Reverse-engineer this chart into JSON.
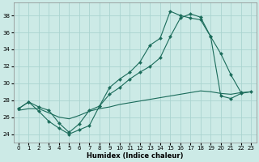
{
  "xlabel": "Humidex (Indice chaleur)",
  "xlim": [
    -0.5,
    23.5
  ],
  "ylim": [
    23.0,
    39.5
  ],
  "yticks": [
    24,
    26,
    28,
    30,
    32,
    34,
    36,
    38
  ],
  "xticks": [
    0,
    1,
    2,
    3,
    4,
    5,
    6,
    7,
    8,
    9,
    10,
    11,
    12,
    13,
    14,
    15,
    16,
    17,
    18,
    19,
    20,
    21,
    22,
    23
  ],
  "bg_color": "#cceae6",
  "grid_color": "#aad4d0",
  "line_color": "#1a6b5a",
  "line1_x": [
    0,
    1,
    2,
    3,
    4,
    5,
    6,
    7,
    8,
    9,
    10,
    11,
    12,
    13,
    14,
    15,
    16,
    17,
    18,
    19,
    20,
    21,
    22,
    23
  ],
  "line1_y": [
    27.0,
    27.8,
    26.7,
    25.5,
    24.7,
    24.0,
    24.5,
    25.0,
    27.3,
    29.5,
    30.5,
    31.3,
    32.5,
    34.5,
    35.3,
    38.5,
    38.0,
    37.7,
    37.5,
    35.5,
    33.5,
    31.0,
    28.9,
    null
  ],
  "line2_x": [
    0,
    1,
    2,
    3,
    4,
    5,
    6,
    7,
    8,
    9,
    10,
    11,
    12,
    13,
    14,
    15,
    16,
    17,
    18,
    19,
    20,
    21,
    22,
    23
  ],
  "line2_y": [
    27.0,
    27.8,
    27.2,
    26.8,
    25.3,
    24.2,
    25.2,
    26.8,
    27.3,
    28.7,
    29.5,
    30.5,
    31.3,
    32.0,
    33.0,
    35.5,
    37.7,
    38.2,
    37.8,
    35.5,
    28.5,
    28.2,
    28.8,
    29.0
  ],
  "line3_x": [
    0,
    1,
    2,
    3,
    4,
    5,
    6,
    7,
    8,
    9,
    10,
    11,
    12,
    13,
    14,
    15,
    16,
    17,
    18,
    19,
    20,
    21,
    22,
    23
  ],
  "line3_y": [
    26.8,
    27.0,
    27.0,
    26.5,
    26.0,
    25.8,
    26.2,
    26.7,
    27.0,
    27.2,
    27.5,
    27.7,
    27.9,
    28.1,
    28.3,
    28.5,
    28.7,
    28.9,
    29.1,
    29.0,
    28.8,
    28.7,
    28.9,
    29.0
  ]
}
